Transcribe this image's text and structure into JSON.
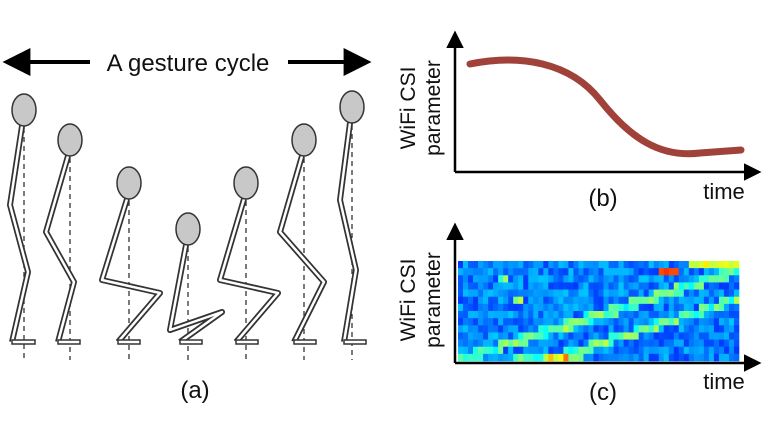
{
  "panel_a": {
    "title": "A gesture cycle",
    "caption": "(a)"
  },
  "panel_b": {
    "ylabel_line1": "WiFi CSI",
    "ylabel_line2": "parameter",
    "xlabel": "time",
    "caption": "(b)",
    "curve_color": "#a0413a"
  },
  "panel_c": {
    "ylabel_line1": "WiFi CSI",
    "ylabel_line2": "parameter",
    "xlabel": "time",
    "caption": "(c)",
    "heatmap_colormap": "jet"
  },
  "colors": {
    "figure_fill": "#c8c8c8",
    "figure_stroke": "#333333",
    "axis": "#000000"
  }
}
